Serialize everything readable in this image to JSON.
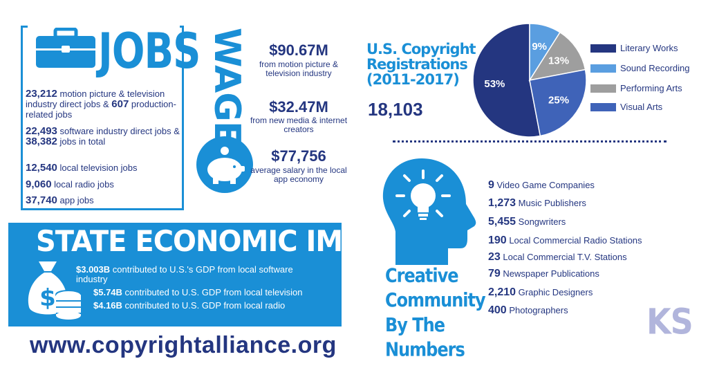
{
  "jobs": {
    "title": "JOBS",
    "lines": [
      {
        "n1": "23,212",
        "t1": " motion picture & television industry direct jobs & ",
        "n2": "607",
        "t2": " production-related jobs"
      },
      {
        "n1": "22,493",
        "t1": " software industry direct jobs & ",
        "n2": "38,382",
        "t2": " jobs in total"
      },
      {
        "n1": "12,540",
        "t1": " local television jobs",
        "n2": "",
        "t2": ""
      },
      {
        "n1": "9,060",
        "t1": " local radio jobs",
        "n2": "",
        "t2": ""
      },
      {
        "n1": "37,740",
        "t1": " app jobs",
        "n2": "",
        "t2": ""
      }
    ]
  },
  "wages": {
    "title": "WAGES",
    "items": [
      {
        "amount": "$90.67M",
        "desc": "from motion picture & television industry"
      },
      {
        "amount": "$32.47M",
        "desc": "from new media & internet creators"
      },
      {
        "amount": "$77,756",
        "desc": "average salary in the local app economy"
      }
    ]
  },
  "copyright": {
    "title_line1": "U.S. Copyright",
    "title_line2": "Registrations",
    "title_line3": "(2011-2017)",
    "count": "18,103"
  },
  "chart_data": {
    "type": "pie",
    "title": "",
    "series": [
      {
        "name": "Literary Works",
        "value": 53,
        "label": "53%",
        "color": "#243680"
      },
      {
        "name": "Sound Recording",
        "value": 9,
        "label": "9%",
        "color": "#5a9ee0"
      },
      {
        "name": "Performing Arts",
        "value": 13,
        "label": "13%",
        "color": "#9e9e9e"
      },
      {
        "name": "Visual Arts",
        "value": 25,
        "label": "25%",
        "color": "#3f63b8"
      }
    ],
    "legend_position": "right"
  },
  "sei": {
    "title": "STATE ECONOMIC IMPACT",
    "lines": [
      {
        "amt": "$3.003B",
        "text": " contributed to U.S.'s GDP from local software industry"
      },
      {
        "amt": "$5.74B",
        "text": " contributed to U.S. GDP from local television"
      },
      {
        "amt": "$4.16B",
        "text": " contributed to U.S. GDP from local radio"
      }
    ]
  },
  "website": "www.copyrightalliance.org",
  "creative": {
    "title_lines": [
      "Creative",
      "Community",
      "By The",
      "Numbers"
    ],
    "items": [
      {
        "n": "9",
        "t": "Video Game Companies"
      },
      {
        "n": "1,273",
        "t": "Music Publishers"
      },
      {
        "n": "5,455",
        "t": "Songwriters"
      },
      {
        "n": "190",
        "t": "Local Commercial Radio Stations"
      },
      {
        "n": "23",
        "t": "Local Commercial T.V. Stations"
      },
      {
        "n": "79",
        "t": "Newspaper Publications"
      },
      {
        "n": "2,210",
        "t": "Graphic Designers"
      },
      {
        "n": "400",
        "t": "Photographers"
      }
    ]
  },
  "badge": "KS",
  "colors": {
    "primary_blue": "#1a8fd6",
    "navy": "#243680",
    "badge_lavender": "#b1b5dc"
  },
  "icons": [
    "briefcase-icon",
    "piggy-bank-icon",
    "money-bag-icon",
    "coin-stack-icon",
    "head-lightbulb-icon"
  ]
}
